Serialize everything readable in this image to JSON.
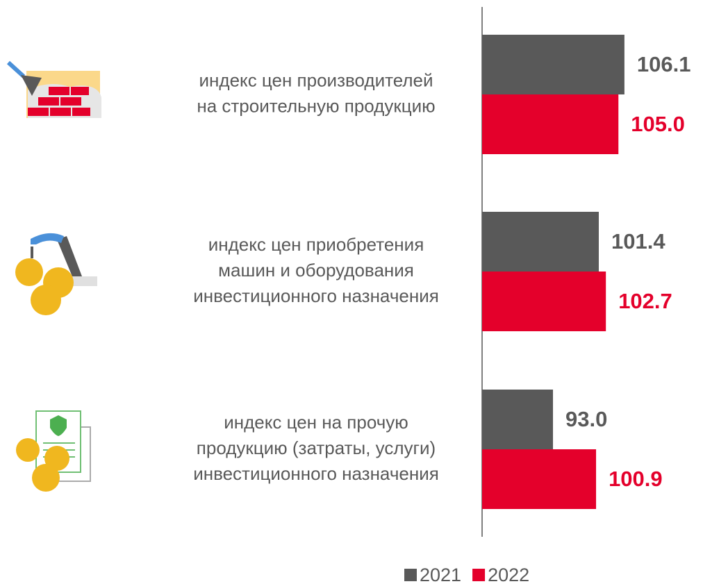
{
  "chart_data": {
    "type": "bar",
    "orientation": "horizontal",
    "categories": [
      "индекс цен производителей\nна строительную продукцию",
      "индекс цен приобретения\nмашин и оборудования\nинвестиционного назначения",
      "индекс цен на прочую\nпродукцию (затраты, услуги)\nинвестиционного назначения"
    ],
    "series": [
      {
        "name": "2021",
        "color": "#595959",
        "values": [
          106.1,
          101.4,
          93.0
        ],
        "value_labels": [
          "106.1",
          "101.4",
          "93.0"
        ]
      },
      {
        "name": "2022",
        "color": "#e4002b",
        "values": [
          105.0,
          102.7,
          100.9
        ],
        "value_labels": [
          "105.0",
          "102.7",
          "100.9"
        ]
      }
    ],
    "xlim": [
      80,
      120
    ],
    "legend": "bottom"
  }
}
